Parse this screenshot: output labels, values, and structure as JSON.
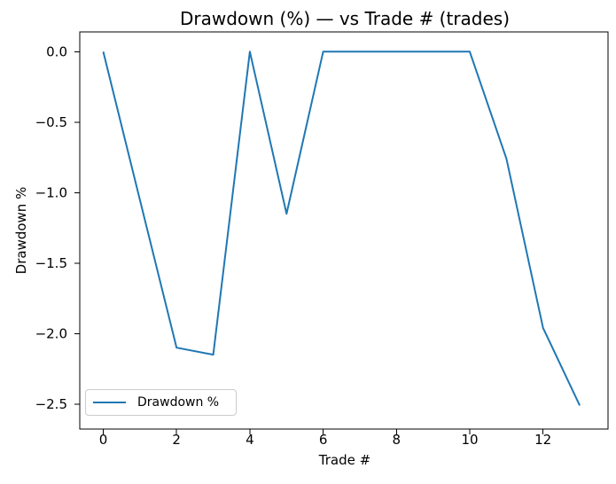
{
  "chart_data": {
    "type": "line",
    "title": "Drawdown (%) — vs Trade # (trades)",
    "xlabel": "Trade #",
    "ylabel": "Drawdown %",
    "x": [
      0,
      1,
      2,
      3,
      4,
      5,
      6,
      7,
      8,
      9,
      10,
      11,
      12,
      13
    ],
    "series": [
      {
        "name": "Drawdown %",
        "color": "#1f77b4",
        "values": [
          0.0,
          -1.05,
          -2.1,
          -2.15,
          0.0,
          -1.15,
          0.0,
          0.0,
          0.0,
          0.0,
          0.0,
          -0.76,
          -1.96,
          -2.51
        ]
      }
    ],
    "xticks": {
      "values": [
        0,
        2,
        4,
        6,
        8,
        10,
        12
      ],
      "labels": [
        "0",
        "2",
        "4",
        "6",
        "8",
        "10",
        "12"
      ]
    },
    "yticks": {
      "values": [
        0.0,
        -0.5,
        -1.0,
        -1.5,
        -2.0,
        -2.5
      ],
      "labels": [
        "0.0",
        "−0.5",
        "−1.0",
        "−1.5",
        "−2.0",
        "−2.5"
      ]
    },
    "xlim": [
      -0.65,
      13.65
    ],
    "ylim": [
      -2.64,
      0.13
    ],
    "grid": false,
    "legend": {
      "position": "lower left",
      "entries": [
        "Drawdown %"
      ]
    },
    "colors": {
      "line": "#1f77b4",
      "spine": "#000000",
      "legend_edge": "#cccccc",
      "background": "#ffffff"
    }
  }
}
